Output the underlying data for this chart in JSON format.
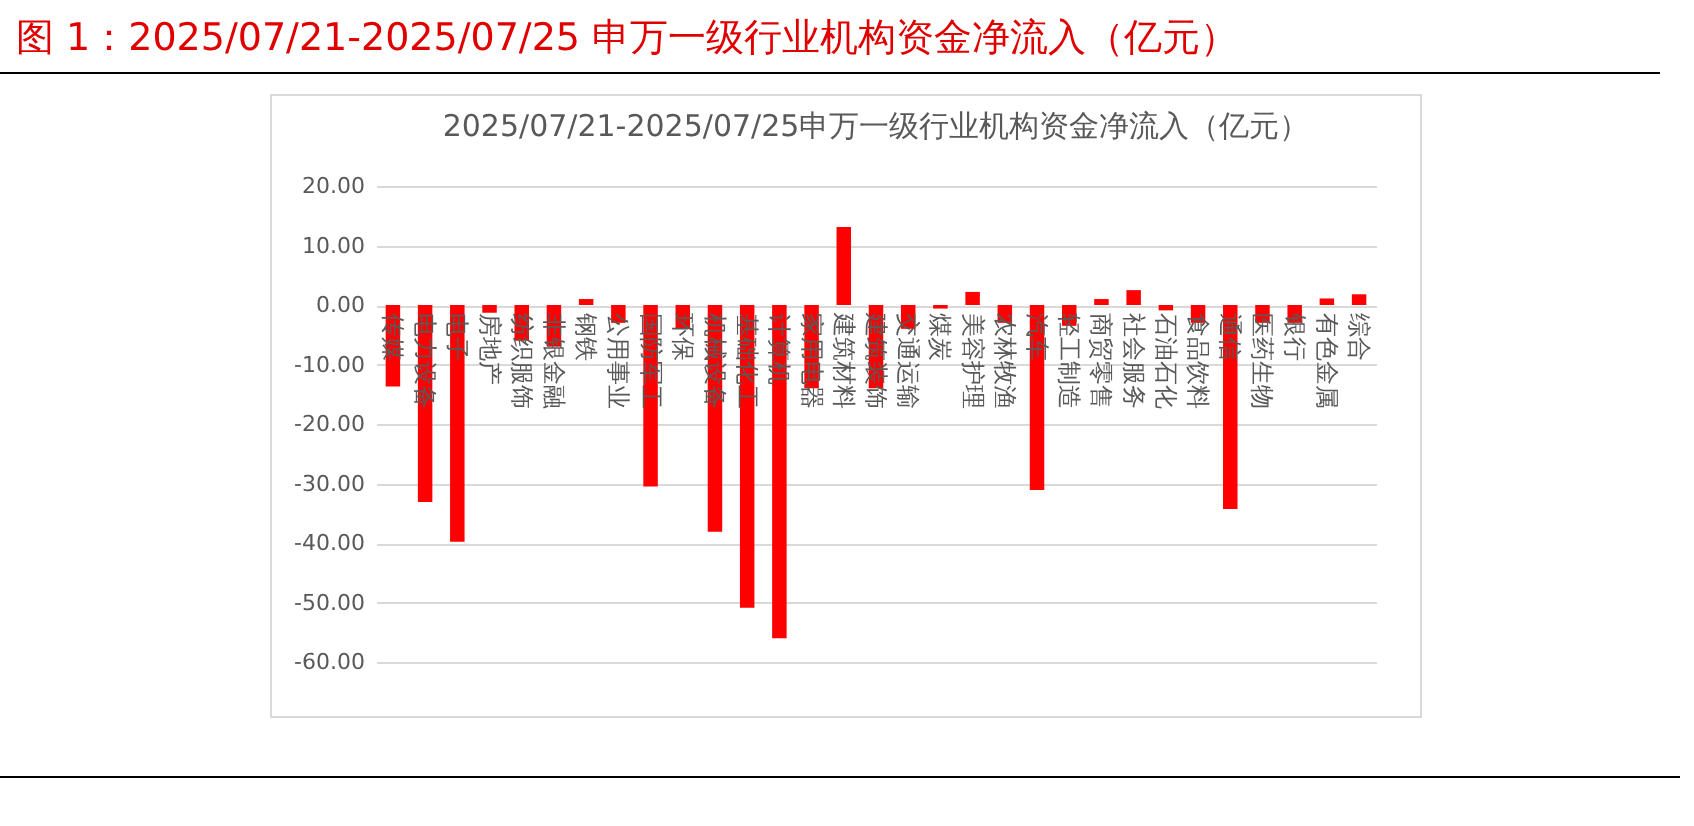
{
  "chart_data": {
    "type": "bar",
    "title": "图 1：2025/07/21-2025/07/25 申万一级行业机构资金净流入（亿元）",
    "subtitle": "2025/07/21-2025/07/25申万一级行业机构资金净流入（亿元）",
    "categories": [
      "传媒",
      "电力设备",
      "电子",
      "房地产",
      "纺织服饰",
      "非银金融",
      "钢铁",
      "公用事业",
      "国防军工",
      "环保",
      "机械设备",
      "基础化工",
      "计算机",
      "家用电器",
      "建筑材料",
      "建筑装饰",
      "交通运输",
      "煤炭",
      "美容护理",
      "农林牧渔",
      "汽车",
      "轻工制造",
      "商贸零售",
      "社会服务",
      "石油石化",
      "食品饮料",
      "通信",
      "医药生物",
      "银行",
      "有色金属",
      "综合"
    ],
    "series": [
      {
        "color": "#ff0000",
        "values": [
          -13.7,
          -33.1,
          -39.8,
          -1.3,
          -6,
          -7,
          1,
          -3,
          -30.5,
          -4,
          -38.1,
          -50.9,
          -56,
          -14,
          13.1,
          -14,
          -4,
          -0.6,
          2.2,
          -3,
          -31.1,
          -3.5,
          1,
          2.5,
          -0.9,
          -3,
          -34.3,
          -3,
          -3,
          1.1,
          1.8
        ]
      }
    ],
    "ylim": [
      -60,
      20
    ],
    "yticks": [
      {
        "value": -60,
        "label": "-60.00"
      },
      {
        "value": -50,
        "label": "-50.00"
      },
      {
        "value": -40,
        "label": "-40.00"
      },
      {
        "value": -30,
        "label": "-30.00"
      },
      {
        "value": -20,
        "label": "-20.00"
      },
      {
        "value": -10,
        "label": "-10.00"
      },
      {
        "value": 0,
        "label": "0.00"
      },
      {
        "value": 10,
        "label": "10.00"
      },
      {
        "value": 20,
        "label": "20.00"
      }
    ],
    "grid": "y"
  }
}
